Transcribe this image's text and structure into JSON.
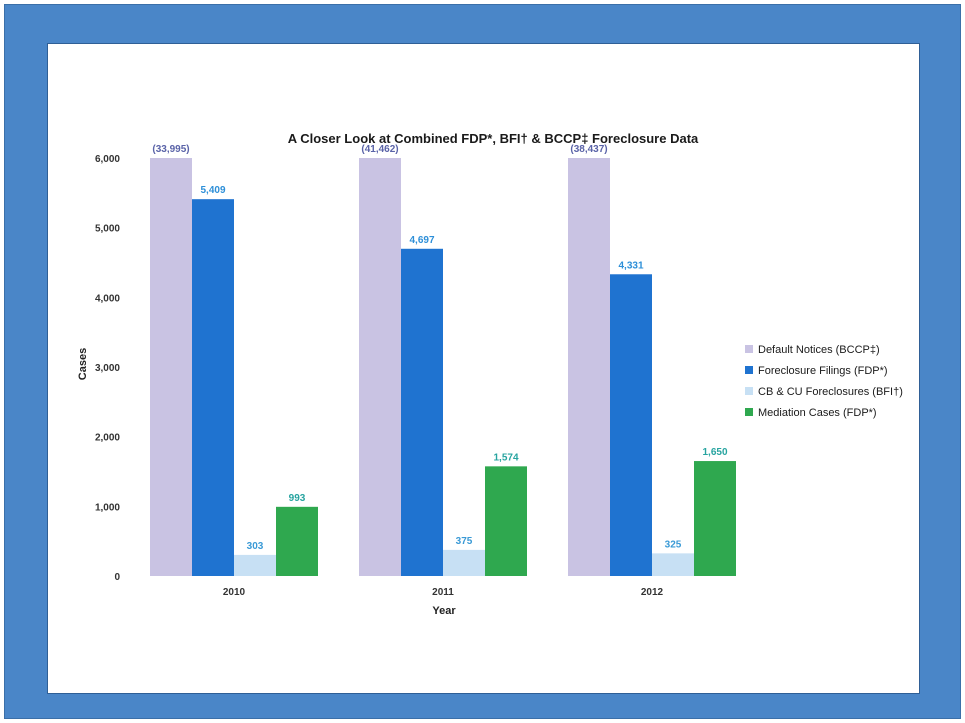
{
  "chart_data": {
    "type": "bar",
    "title": "A Closer Look at Combined FDP*, BFI† & BCCP‡  Foreclosure Data",
    "xlabel": "Year",
    "ylabel": "Cases",
    "categories": [
      "2010",
      "2011",
      "2012"
    ],
    "ylim": [
      0,
      6000
    ],
    "yticks": [
      "0",
      "1,000",
      "2,000",
      "3,000",
      "4,000",
      "5,000",
      "6,000"
    ],
    "legend_position": "right",
    "grid": false,
    "series": [
      {
        "name": "Default Notices (BCCP‡)",
        "values": [
          33995,
          41462,
          38437
        ],
        "labels": [
          "(33,995)",
          "(41,462)",
          "(38,437)"
        ],
        "color": "#c9c3e3",
        "label_color": "#5a63a8"
      },
      {
        "name": "Foreclosure Filings (FDP*)",
        "values": [
          5409,
          4697,
          4331
        ],
        "labels": [
          "5,409",
          "4,697",
          "4,331"
        ],
        "color": "#1f73d0",
        "label_color": "#2d8fd8"
      },
      {
        "name": "CB & CU Foreclosures (BFI†)",
        "values": [
          303,
          375,
          325
        ],
        "labels": [
          "303",
          "375",
          "325"
        ],
        "color": "#c7e0f4",
        "label_color": "#3a9ad6"
      },
      {
        "name": "Mediation Cases (FDP*)",
        "values": [
          993,
          1574,
          1650
        ],
        "labels": [
          "993",
          "1,574",
          "1,650"
        ],
        "color": "#2fa84f",
        "label_color": "#27a4a0"
      }
    ]
  }
}
